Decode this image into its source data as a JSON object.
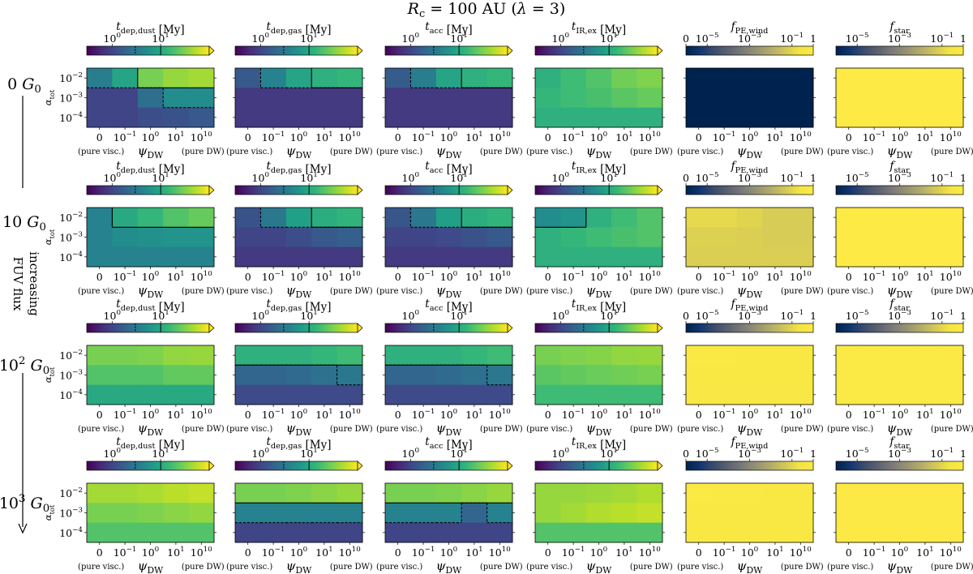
{
  "chart_data": {
    "type": "heatmap",
    "title": "R_c = 100 AU (λ = 3)",
    "side_label": [
      "increasing",
      "FUV flux"
    ],
    "rows": [
      "0 G0",
      "10 G0",
      "10^2 G0",
      "10^3 G0"
    ],
    "xlabel": "ψ_DW",
    "x_ticks": [
      "0",
      "10^-1",
      "10^0",
      "10^1",
      "10^10"
    ],
    "x_end_labels": [
      "(pure visc.)",
      "(pure DW)"
    ],
    "ylabel": "α_tot",
    "y_ticks": [
      "10^-2",
      "10^-3",
      "10^-4"
    ],
    "panels": [
      {
        "name": "t_dep,dust",
        "label": "t_dep,dust [My]",
        "scale": "time",
        "colormap": "viridis",
        "vrange": [
          0.3,
          100
        ],
        "cb_ticks": [
          {
            "v": 1,
            "label": "10^0"
          },
          {
            "v": 10,
            "label": "10^1"
          }
        ]
      },
      {
        "name": "t_dep,gas",
        "label": "t_dep,gas [My]",
        "scale": "time",
        "colormap": "viridis",
        "vrange": [
          0.3,
          100
        ],
        "cb_ticks": [
          {
            "v": 1,
            "label": "10^0"
          },
          {
            "v": 10,
            "label": "10^1"
          }
        ]
      },
      {
        "name": "t_acc",
        "label": "t_acc [My]",
        "scale": "time",
        "colormap": "viridis",
        "vrange": [
          0.3,
          100
        ],
        "cb_ticks": [
          {
            "v": 1,
            "label": "10^0"
          },
          {
            "v": 10,
            "label": "10^1"
          }
        ]
      },
      {
        "name": "t_IR,ex",
        "label": "t_IR,ex [My]",
        "scale": "time",
        "colormap": "viridis",
        "vrange": [
          0.3,
          100
        ],
        "cb_ticks": [
          {
            "v": 1,
            "label": "10^0"
          },
          {
            "v": 10,
            "label": "10^1"
          }
        ]
      },
      {
        "name": "f_PE,wind",
        "label": "f_PE,wind",
        "scale": "fraction",
        "colormap": "cividis",
        "vrange": [
          1e-06,
          1
        ],
        "cb_ticks": [
          {
            "v": 1e-06,
            "label": "0"
          },
          {
            "v": 1e-05,
            "label": "10^-5"
          },
          {
            "v": 0.001,
            "label": "10^-3"
          },
          {
            "v": 0.1,
            "label": "10^-1"
          },
          {
            "v": 1,
            "label": "1"
          }
        ]
      },
      {
        "name": "f_star",
        "label": "f_star",
        "scale": "fraction",
        "colormap": "cividis",
        "vrange": [
          1e-06,
          1
        ],
        "cb_ticks": [
          {
            "v": 1e-05,
            "label": "10^-5"
          },
          {
            "v": 0.001,
            "label": "10^-3"
          },
          {
            "v": 0.1,
            "label": "10^-1"
          },
          {
            "v": 1,
            "label": "1"
          }
        ]
      }
    ],
    "grid_values": [
      [
        [
          [
            3.5,
            9,
            30,
            40,
            45
          ],
          [
            1,
            1,
            2.5,
            5,
            5
          ],
          [
            1,
            1,
            1.2,
            1.3,
            1.5
          ]
        ],
        [
          [
            1.5,
            4,
            9,
            12,
            14
          ],
          [
            0.8,
            0.8,
            0.8,
            0.8,
            0.8
          ],
          [
            0.8,
            0.8,
            0.8,
            0.8,
            0.8
          ]
        ],
        [
          [
            1.6,
            3.5,
            9,
            12,
            14
          ],
          [
            0.8,
            0.8,
            0.8,
            0.8,
            0.8
          ],
          [
            0.8,
            0.8,
            0.8,
            0.8,
            0.8
          ]
        ],
        [
          [
            12,
            16,
            20,
            28,
            32
          ],
          [
            14,
            16,
            18,
            22,
            25
          ],
          [
            12,
            12,
            12,
            12,
            12
          ]
        ],
        [
          [
            1e-06,
            1e-06,
            1e-06,
            1e-06,
            1e-06
          ],
          [
            1e-06,
            1e-06,
            1e-06,
            1e-06,
            1e-06
          ],
          [
            1e-06,
            1e-06,
            1e-06,
            1e-06,
            1e-06
          ]
        ],
        [
          [
            0.95,
            0.95,
            0.95,
            0.95,
            0.95
          ],
          [
            0.95,
            0.95,
            0.95,
            0.95,
            0.95
          ],
          [
            0.95,
            0.95,
            0.95,
            0.95,
            0.95
          ]
        ]
      ],
      [
        [
          [
            4,
            10,
            14,
            20,
            25
          ],
          [
            4,
            5,
            5.5,
            6,
            6
          ],
          [
            4,
            4,
            4,
            4,
            4
          ]
        ],
        [
          [
            1.3,
            3,
            8,
            11,
            13
          ],
          [
            1,
            1,
            1.2,
            1.5,
            1.7
          ],
          [
            0.8,
            0.8,
            0.8,
            0.8,
            0.8
          ]
        ],
        [
          [
            1.4,
            3,
            8,
            11,
            13
          ],
          [
            1,
            1,
            1.1,
            1.3,
            1.5
          ],
          [
            0.8,
            0.8,
            0.8,
            0.8,
            0.8
          ]
        ],
        [
          [
            5,
            6,
            12,
            16,
            20
          ],
          [
            12,
            14,
            16,
            18,
            20
          ],
          [
            12,
            12,
            12,
            12,
            12
          ]
        ],
        [
          [
            0.12,
            0.12,
            0.09,
            0.06,
            0.06
          ],
          [
            0.08,
            0.08,
            0.07,
            0.06,
            0.06
          ],
          [
            0.07,
            0.07,
            0.07,
            0.07,
            0.07
          ]
        ],
        [
          [
            0.95,
            0.95,
            0.95,
            0.95,
            0.95
          ],
          [
            0.95,
            0.95,
            0.95,
            0.95,
            0.95
          ],
          [
            0.95,
            0.95,
            0.95,
            0.95,
            0.95
          ]
        ]
      ],
      [
        [
          [
            30,
            30,
            32,
            38,
            40
          ],
          [
            20,
            20,
            20,
            24,
            24
          ],
          [
            10,
            10,
            10,
            10,
            10
          ]
        ],
        [
          [
            12,
            12,
            12,
            14,
            16
          ],
          [
            2,
            2,
            2.2,
            2.6,
            3
          ],
          [
            1.1,
            1.1,
            1.1,
            1.1,
            1.1
          ]
        ],
        [
          [
            12,
            12,
            12,
            14,
            16
          ],
          [
            2,
            2,
            2.2,
            2.6,
            3
          ],
          [
            1.1,
            1.1,
            1.1,
            1.1,
            1.1
          ]
        ],
        [
          [
            30,
            32,
            34,
            38,
            40
          ],
          [
            22,
            24,
            26,
            28,
            30
          ],
          [
            16,
            16,
            16,
            16,
            16
          ]
        ],
        [
          [
            0.7,
            0.7,
            0.6,
            0.55,
            0.55
          ],
          [
            0.55,
            0.55,
            0.55,
            0.55,
            0.55
          ],
          [
            0.5,
            0.5,
            0.5,
            0.5,
            0.5
          ]
        ],
        [
          [
            0.8,
            0.8,
            0.8,
            0.8,
            0.8
          ],
          [
            0.8,
            0.8,
            0.8,
            0.8,
            0.8
          ],
          [
            0.8,
            0.8,
            0.8,
            0.8,
            0.8
          ]
        ]
      ],
      [
        [
          [
            45,
            45,
            48,
            55,
            60
          ],
          [
            30,
            30,
            32,
            35,
            38
          ],
          [
            20,
            20,
            20,
            20,
            20
          ]
        ],
        [
          [
            30,
            30,
            32,
            35,
            40
          ],
          [
            4,
            4,
            4,
            4,
            4
          ],
          [
            1,
            1,
            1,
            1,
            1
          ]
        ],
        [
          [
            30,
            30,
            32,
            35,
            40
          ],
          [
            4,
            4,
            4,
            2,
            4
          ],
          [
            1,
            1,
            1,
            1,
            1
          ]
        ],
        [
          [
            40,
            40,
            42,
            45,
            50
          ],
          [
            40,
            45,
            50,
            55,
            60
          ],
          [
            20,
            20,
            20,
            20,
            20
          ]
        ],
        [
          [
            0.75,
            0.7,
            0.65,
            0.6,
            0.6
          ],
          [
            0.6,
            0.6,
            0.6,
            0.6,
            0.6
          ],
          [
            0.55,
            0.55,
            0.55,
            0.55,
            0.55
          ]
        ],
        [
          [
            0.85,
            0.85,
            0.85,
            0.85,
            0.85
          ],
          [
            0.85,
            0.85,
            0.85,
            0.85,
            0.85
          ],
          [
            0.85,
            0.85,
            0.85,
            0.85,
            0.85
          ]
        ]
      ]
    ]
  }
}
